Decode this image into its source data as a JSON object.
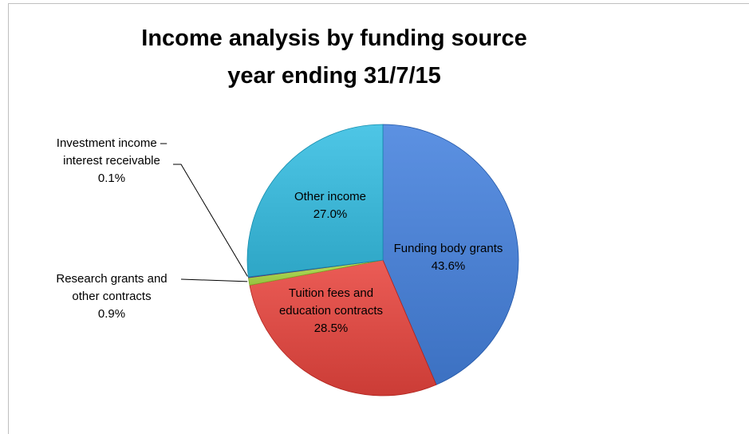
{
  "chart_data": {
    "type": "pie",
    "title": "Income analysis by funding source\nyear ending 31/7/15",
    "slices": [
      {
        "label": "Funding body grants",
        "value": 43.6,
        "display": "43.6%",
        "color": "#4a7fd0"
      },
      {
        "label": "Tuition fees and education contracts",
        "value": 28.5,
        "display": "28.5%",
        "color": "#d94a44"
      },
      {
        "label": "Research grants and other contracts",
        "value": 0.9,
        "display": "0.9%",
        "color": "#a4cf4d"
      },
      {
        "label": "Investment income – interest receivable",
        "value": 0.1,
        "display": "0.1%",
        "color": "#7a5aa6"
      },
      {
        "label": "Other income",
        "value": 27.0,
        "display": "27.0%",
        "color": "#3cb4d4"
      }
    ],
    "legend": "none"
  }
}
